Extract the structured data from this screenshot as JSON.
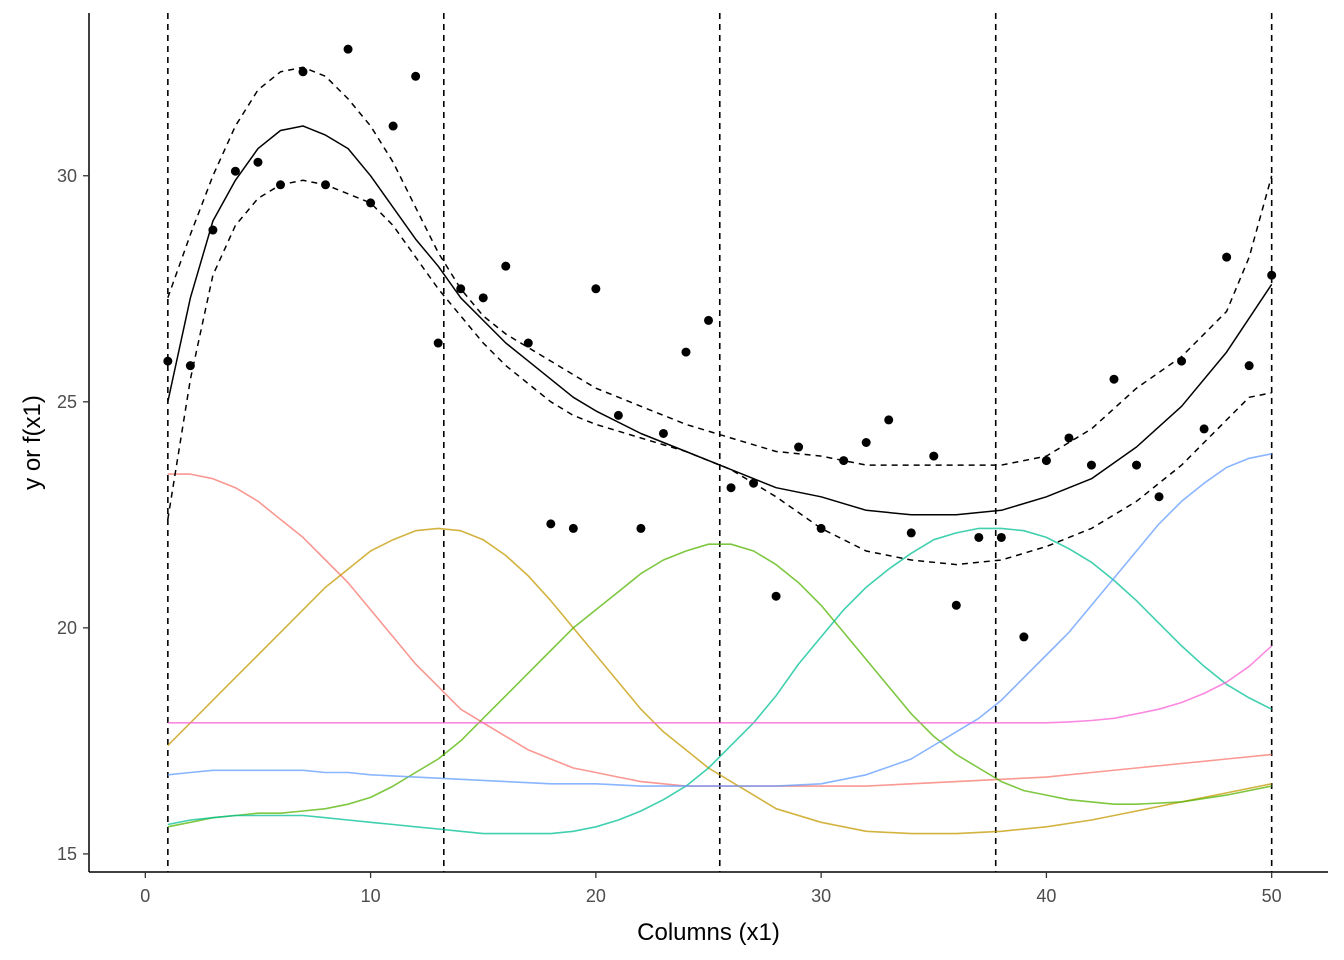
{
  "chart_data": {
    "type": "line",
    "xlabel": "Columns (x1)",
    "ylabel": "y or f(x1)",
    "xlim": [
      -2.5,
      52.5
    ],
    "ylim": [
      14.6,
      33.6
    ],
    "x_ticks": [
      0,
      10,
      20,
      30,
      40,
      50
    ],
    "y_ticks": [
      15,
      20,
      25,
      30
    ],
    "x_tick_labels": [
      "0",
      "10",
      "20",
      "30",
      "40",
      "50"
    ],
    "y_tick_labels": [
      "15",
      "20",
      "25",
      "30"
    ],
    "grid": false,
    "knots": [
      1,
      13.25,
      25.5,
      37.75,
      50
    ],
    "points": {
      "x": [
        1,
        2,
        3,
        4,
        5,
        6,
        7,
        8,
        9,
        10,
        11,
        12,
        13,
        14,
        15,
        16,
        17,
        18,
        19,
        20,
        21,
        22,
        23,
        24,
        25,
        26,
        27,
        28,
        29,
        30,
        31,
        32,
        33,
        34,
        35,
        36,
        37,
        38,
        39,
        40,
        41,
        42,
        43,
        44,
        45,
        46,
        47,
        48,
        49,
        50
      ],
      "y": [
        25.9,
        25.8,
        28.8,
        30.1,
        30.3,
        29.8,
        32.3,
        29.8,
        32.8,
        29.4,
        31.1,
        32.2,
        26.3,
        27.5,
        27.3,
        28.0,
        26.3,
        22.3,
        22.2,
        27.5,
        24.7,
        22.2,
        24.3,
        26.1,
        26.8,
        23.1,
        23.2,
        20.7,
        24.0,
        22.2,
        23.7,
        24.1,
        24.6,
        22.1,
        23.8,
        20.5,
        22.0,
        22.0,
        19.8,
        23.7,
        24.2,
        23.6,
        25.5,
        23.6,
        22.9,
        25.9,
        24.4,
        28.2,
        25.8,
        27.8
      ]
    },
    "fit": {
      "x": [
        1,
        2,
        3,
        4,
        5,
        6,
        7,
        8,
        9,
        10,
        11,
        12,
        13,
        14,
        15,
        16,
        17,
        18,
        19,
        20,
        22,
        24,
        26,
        28,
        30,
        32,
        34,
        36,
        38,
        40,
        42,
        44,
        46,
        48,
        50
      ],
      "y": [
        25.0,
        27.3,
        29.0,
        29.9,
        30.6,
        31.0,
        31.1,
        30.9,
        30.6,
        30.0,
        29.3,
        28.6,
        28.0,
        27.3,
        26.8,
        26.3,
        25.9,
        25.5,
        25.1,
        24.8,
        24.3,
        23.9,
        23.5,
        23.1,
        22.9,
        22.6,
        22.5,
        22.5,
        22.6,
        22.9,
        23.3,
        24.0,
        24.9,
        26.1,
        27.6
      ]
    },
    "upper": {
      "x": [
        1,
        2,
        3,
        4,
        5,
        6,
        7,
        8,
        9,
        10,
        11,
        12,
        13,
        14,
        15,
        16,
        17,
        18,
        19,
        20,
        22,
        24,
        26,
        28,
        30,
        32,
        34,
        36,
        38,
        40,
        42,
        44,
        46,
        48,
        49,
        50
      ],
      "y": [
        27.3,
        28.7,
        30.0,
        31.1,
        31.9,
        32.3,
        32.4,
        32.2,
        31.7,
        31.1,
        30.3,
        29.3,
        28.3,
        27.5,
        26.9,
        26.5,
        26.2,
        25.9,
        25.6,
        25.3,
        24.9,
        24.5,
        24.2,
        23.9,
        23.8,
        23.6,
        23.6,
        23.6,
        23.6,
        23.8,
        24.4,
        25.3,
        26.0,
        27.0,
        28.2,
        30.0
      ]
    },
    "lower": {
      "x": [
        1,
        2,
        3,
        4,
        5,
        6,
        7,
        8,
        9,
        10,
        11,
        12,
        13,
        14,
        15,
        16,
        17,
        18,
        19,
        20,
        22,
        24,
        26,
        28,
        30,
        32,
        34,
        36,
        38,
        40,
        42,
        44,
        46,
        48,
        49,
        50
      ],
      "y": [
        22.4,
        25.5,
        27.8,
        28.9,
        29.5,
        29.8,
        29.9,
        29.8,
        29.6,
        29.4,
        28.9,
        28.2,
        27.5,
        26.9,
        26.3,
        25.8,
        25.4,
        25.0,
        24.7,
        24.5,
        24.2,
        23.9,
        23.5,
        22.9,
        22.2,
        21.7,
        21.5,
        21.4,
        21.5,
        21.8,
        22.2,
        22.8,
        23.6,
        24.6,
        25.1,
        25.2
      ]
    },
    "series": [
      {
        "name": "",
        "color": "#F8766D",
        "x": [
          1,
          2,
          3,
          4,
          5,
          6,
          7,
          8,
          9,
          10,
          11,
          12,
          13,
          14,
          15,
          16,
          17,
          18,
          19,
          20,
          21,
          22,
          23,
          24,
          25,
          26,
          28,
          30,
          32,
          34,
          36,
          38,
          40,
          42,
          44,
          46,
          48,
          50
        ],
        "y": [
          23.4,
          23.4,
          23.3,
          23.1,
          22.8,
          22.4,
          22.0,
          21.5,
          21.0,
          20.4,
          19.8,
          19.2,
          18.7,
          18.2,
          17.9,
          17.6,
          17.3,
          17.1,
          16.9,
          16.8,
          16.7,
          16.6,
          16.55,
          16.5,
          16.5,
          16.5,
          16.5,
          16.5,
          16.5,
          16.55,
          16.6,
          16.65,
          16.7,
          16.8,
          16.9,
          17.0,
          17.1,
          17.2
        ]
      },
      {
        "name": "",
        "color": "#C49A00",
        "x": [
          1,
          2,
          3,
          4,
          5,
          6,
          7,
          8,
          9,
          10,
          11,
          12,
          13,
          14,
          15,
          16,
          17,
          18,
          19,
          20,
          21,
          22,
          23,
          24,
          25,
          26,
          27,
          28,
          30,
          32,
          34,
          36,
          38,
          40,
          42,
          44,
          46,
          48,
          50
        ],
        "y": [
          17.4,
          17.9,
          18.4,
          18.9,
          19.4,
          19.9,
          20.4,
          20.9,
          21.3,
          21.7,
          21.95,
          22.15,
          22.2,
          22.15,
          21.95,
          21.6,
          21.15,
          20.6,
          20.0,
          19.4,
          18.8,
          18.2,
          17.7,
          17.3,
          16.9,
          16.6,
          16.3,
          16.0,
          15.7,
          15.5,
          15.45,
          15.45,
          15.5,
          15.6,
          15.75,
          15.95,
          16.15,
          16.35,
          16.55
        ]
      },
      {
        "name": "",
        "color": "#53B400",
        "x": [
          1,
          2,
          3,
          4,
          5,
          6,
          7,
          8,
          9,
          10,
          11,
          12,
          13,
          14,
          15,
          16,
          17,
          18,
          19,
          20,
          21,
          22,
          23,
          24,
          25,
          26,
          27,
          28,
          29,
          30,
          31,
          32,
          33,
          34,
          35,
          36,
          37,
          38,
          39,
          40,
          41,
          42,
          43,
          44,
          46,
          48,
          50
        ],
        "y": [
          15.6,
          15.7,
          15.8,
          15.85,
          15.9,
          15.9,
          15.95,
          16.0,
          16.1,
          16.25,
          16.5,
          16.8,
          17.1,
          17.5,
          18.0,
          18.5,
          19.0,
          19.5,
          20.0,
          20.4,
          20.8,
          21.2,
          21.5,
          21.7,
          21.85,
          21.85,
          21.7,
          21.4,
          21.0,
          20.5,
          19.9,
          19.3,
          18.7,
          18.1,
          17.6,
          17.2,
          16.9,
          16.6,
          16.4,
          16.3,
          16.2,
          16.15,
          16.1,
          16.1,
          16.15,
          16.3,
          16.5
        ]
      },
      {
        "name": "",
        "color": "#00C094",
        "x": [
          1,
          2,
          3,
          4,
          5,
          6,
          7,
          8,
          9,
          10,
          11,
          12,
          13,
          14,
          15,
          16,
          17,
          18,
          19,
          20,
          21,
          22,
          23,
          24,
          25,
          26,
          27,
          28,
          29,
          30,
          31,
          32,
          33,
          34,
          35,
          36,
          37,
          38,
          39,
          40,
          41,
          42,
          43,
          44,
          45,
          46,
          47,
          48,
          49,
          50
        ],
        "y": [
          15.65,
          15.75,
          15.8,
          15.85,
          15.85,
          15.85,
          15.85,
          15.8,
          15.75,
          15.7,
          15.65,
          15.6,
          15.55,
          15.5,
          15.45,
          15.45,
          15.45,
          15.45,
          15.5,
          15.6,
          15.75,
          15.95,
          16.2,
          16.5,
          16.9,
          17.4,
          17.9,
          18.5,
          19.2,
          19.8,
          20.4,
          20.9,
          21.3,
          21.65,
          21.95,
          22.1,
          22.2,
          22.2,
          22.15,
          22.0,
          21.75,
          21.45,
          21.05,
          20.6,
          20.1,
          19.6,
          19.15,
          18.75,
          18.45,
          18.2
        ]
      },
      {
        "name": "",
        "color": "#619CFF",
        "x": [
          1,
          2,
          3,
          4,
          5,
          6,
          7,
          8,
          9,
          10,
          12,
          14,
          16,
          18,
          20,
          22,
          24,
          26,
          28,
          30,
          32,
          34,
          36,
          37,
          38,
          39,
          40,
          41,
          42,
          43,
          44,
          45,
          46,
          47,
          48,
          49,
          50
        ],
        "y": [
          16.75,
          16.8,
          16.85,
          16.85,
          16.85,
          16.85,
          16.85,
          16.8,
          16.8,
          16.75,
          16.7,
          16.65,
          16.6,
          16.55,
          16.55,
          16.5,
          16.5,
          16.5,
          16.5,
          16.55,
          16.75,
          17.1,
          17.7,
          18.0,
          18.4,
          18.9,
          19.4,
          19.9,
          20.5,
          21.1,
          21.7,
          22.3,
          22.8,
          23.2,
          23.55,
          23.75,
          23.85
        ]
      },
      {
        "name": "",
        "color": "#FB61D7",
        "x": [
          1,
          5,
          10,
          15,
          20,
          25,
          30,
          35,
          38,
          40,
          41,
          42,
          43,
          44,
          45,
          46,
          47,
          48,
          49,
          50
        ],
        "y": [
          17.9,
          17.9,
          17.9,
          17.9,
          17.9,
          17.9,
          17.9,
          17.9,
          17.9,
          17.9,
          17.92,
          17.95,
          18.0,
          18.1,
          18.2,
          18.35,
          18.55,
          18.8,
          19.15,
          19.6
        ]
      }
    ]
  }
}
